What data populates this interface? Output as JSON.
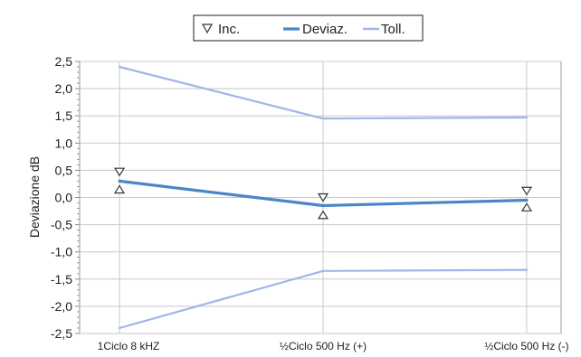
{
  "chart_data": {
    "type": "line",
    "categories": [
      "1Ciclo 8 kHZ",
      "½Ciclo 500 Hz (+)",
      "½Ciclo 500 Hz (-)"
    ],
    "ylabel": "Deviazione dB",
    "ylim": [
      -2.5,
      2.5
    ],
    "yticks": [
      "2,5",
      "2,0",
      "1,5",
      "1,0",
      "0,5",
      "0,0",
      "-0,5",
      "-1,0",
      "-1,5",
      "-2,0",
      "-2,5"
    ],
    "ytick_values": [
      2.5,
      2.0,
      1.5,
      1.0,
      0.5,
      0.0,
      -0.5,
      -1.0,
      -1.5,
      -2.0,
      -2.5
    ],
    "grid": true,
    "legend_position": "top-center",
    "legend": [
      {
        "label": "Inc.",
        "marker": "triangle-down"
      },
      {
        "label": "Deviaz.",
        "color": "#4a86c8"
      },
      {
        "label": "Toll.",
        "color": "#9fb7e6"
      }
    ],
    "series": [
      {
        "name": "Deviaz.",
        "values": [
          0.3,
          -0.15,
          -0.05
        ],
        "color": "#4a86c8"
      },
      {
        "name": "Toll.",
        "values": [
          2.4,
          1.45,
          1.47
        ],
        "color": "#9fb7e6"
      },
      {
        "name": "Toll.",
        "values": [
          -2.4,
          -1.35,
          -1.33
        ],
        "color": "#9fb7e6"
      }
    ],
    "uncertainty": {
      "name": "Inc.",
      "upper": [
        0.47,
        0.0,
        0.12
      ],
      "lower": [
        0.15,
        -0.32,
        -0.18
      ]
    }
  }
}
